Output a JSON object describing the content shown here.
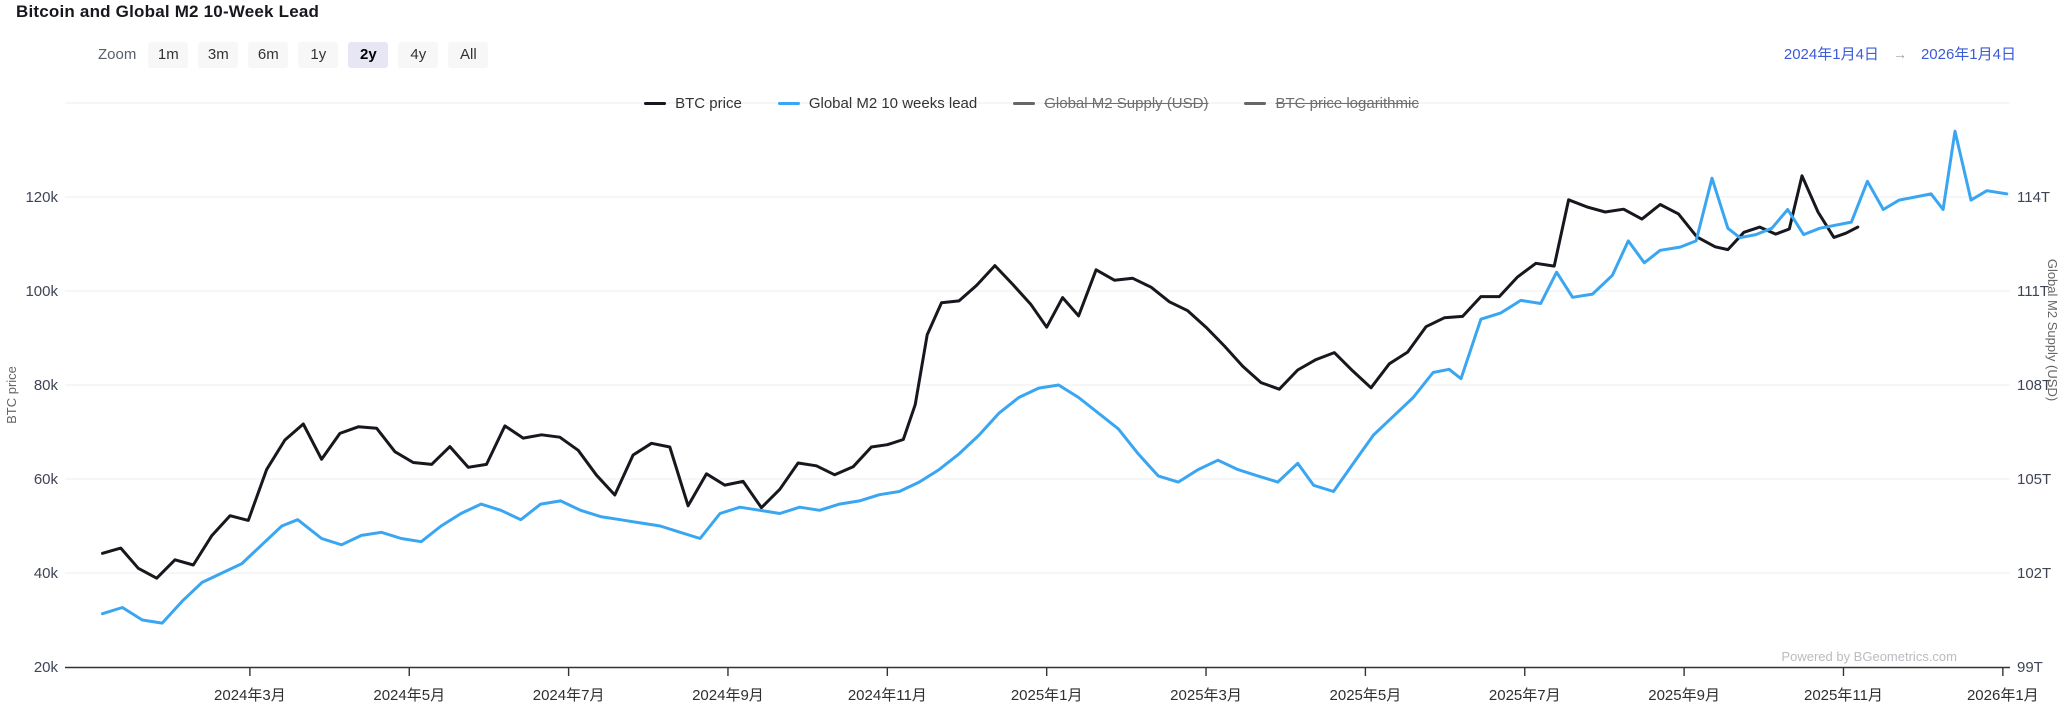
{
  "header": {
    "title": "Bitcoin and Global M2 10-Week Lead"
  },
  "toolbar": {
    "zoom_label": "Zoom",
    "buttons": [
      {
        "label": "1m",
        "selected": false
      },
      {
        "label": "3m",
        "selected": false
      },
      {
        "label": "6m",
        "selected": false
      },
      {
        "label": "1y",
        "selected": false
      },
      {
        "label": "2y",
        "selected": true
      },
      {
        "label": "4y",
        "selected": false
      },
      {
        "label": "All",
        "selected": false
      }
    ]
  },
  "date_range": {
    "from": "2024年1月4日",
    "arrow": "→",
    "to": "2026年1月4日",
    "accent_color": "#3b5bd7"
  },
  "legend": [
    {
      "label": "BTC price",
      "color": "#16181d",
      "enabled": true
    },
    {
      "label": "Global M2 10 weeks lead",
      "color": "#3aa6f2",
      "enabled": true
    },
    {
      "label": "Global M2 Supply (USD)",
      "color": "#666666",
      "enabled": false
    },
    {
      "label": "BTC price logarithmic",
      "color": "#666666",
      "enabled": false
    }
  ],
  "watermark": "Powered by BGeometrics.com",
  "chart_data": {
    "type": "line",
    "title": "Bitcoin and Global M2 10-Week Lead",
    "grid": true,
    "legend_position": "top",
    "x_axis": {
      "start_label": "2024年1月4日",
      "end_label": "2026年1月4日",
      "range_months_from_jan2024": [
        0.1,
        24.1
      ],
      "tick_months": [
        2,
        4,
        6,
        8,
        10,
        12,
        14,
        16,
        18,
        20,
        22,
        24
      ],
      "tick_labels": [
        "2024年3月",
        "2024年5月",
        "2024年7月",
        "2024年9月",
        "2024年11月",
        "2025年1月",
        "2025年3月",
        "2025年5月",
        "2025年7月",
        "2025年9月",
        "2025年11月",
        "2026年1月"
      ]
    },
    "y_left": {
      "label": "BTC price",
      "unit": "k USD",
      "tick_values": [
        20,
        40,
        60,
        80,
        100,
        120
      ],
      "tick_labels": [
        "20k",
        "40k",
        "60k",
        "80k",
        "100k",
        "120k"
      ],
      "range": [
        20,
        140
      ]
    },
    "y_right": {
      "label": "Global M2 Supply (USD)",
      "unit": "T USD",
      "tick_values": [
        99,
        102,
        105,
        108,
        111,
        114
      ],
      "tick_labels": [
        "99T",
        "102T",
        "105T",
        "108T",
        "111T",
        "114T"
      ],
      "range": [
        99,
        117
      ]
    },
    "series": [
      {
        "name": "BTC price",
        "axis": "left",
        "color": "#16181d",
        "points": [
          [
            0.15,
            44.2
          ],
          [
            0.38,
            45.3
          ],
          [
            0.6,
            41.0
          ],
          [
            0.83,
            38.9
          ],
          [
            1.06,
            42.8
          ],
          [
            1.29,
            41.7
          ],
          [
            1.52,
            47.9
          ],
          [
            1.75,
            52.2
          ],
          [
            1.98,
            51.2
          ],
          [
            2.21,
            62.0
          ],
          [
            2.44,
            68.3
          ],
          [
            2.67,
            71.7
          ],
          [
            2.9,
            64.2
          ],
          [
            3.13,
            69.7
          ],
          [
            3.36,
            71.1
          ],
          [
            3.59,
            70.8
          ],
          [
            3.82,
            65.8
          ],
          [
            4.05,
            63.5
          ],
          [
            4.28,
            63.1
          ],
          [
            4.51,
            66.9
          ],
          [
            4.74,
            62.5
          ],
          [
            4.97,
            63.1
          ],
          [
            5.2,
            71.3
          ],
          [
            5.43,
            68.7
          ],
          [
            5.66,
            69.4
          ],
          [
            5.89,
            68.9
          ],
          [
            6.12,
            66.1
          ],
          [
            6.35,
            60.8
          ],
          [
            6.58,
            56.6
          ],
          [
            6.81,
            65.1
          ],
          [
            7.04,
            67.6
          ],
          [
            7.27,
            66.8
          ],
          [
            7.5,
            54.3
          ],
          [
            7.73,
            61.1
          ],
          [
            7.96,
            58.7
          ],
          [
            8.19,
            59.5
          ],
          [
            8.42,
            53.9
          ],
          [
            8.65,
            57.8
          ],
          [
            8.88,
            63.4
          ],
          [
            9.11,
            62.8
          ],
          [
            9.34,
            60.9
          ],
          [
            9.57,
            62.6
          ],
          [
            9.8,
            66.8
          ],
          [
            10.0,
            67.3
          ],
          [
            10.2,
            68.4
          ],
          [
            10.35,
            75.8
          ],
          [
            10.5,
            90.7
          ],
          [
            10.68,
            97.5
          ],
          [
            10.9,
            97.9
          ],
          [
            11.12,
            101.2
          ],
          [
            11.35,
            105.4
          ],
          [
            11.58,
            101.3
          ],
          [
            11.8,
            97.2
          ],
          [
            12.0,
            92.3
          ],
          [
            12.2,
            98.6
          ],
          [
            12.4,
            94.7
          ],
          [
            12.62,
            104.5
          ],
          [
            12.85,
            102.3
          ],
          [
            13.08,
            102.7
          ],
          [
            13.31,
            100.8
          ],
          [
            13.54,
            97.7
          ],
          [
            13.77,
            95.8
          ],
          [
            14.0,
            92.3
          ],
          [
            14.23,
            88.3
          ],
          [
            14.46,
            84.0
          ],
          [
            14.69,
            80.5
          ],
          [
            14.92,
            79.1
          ],
          [
            15.15,
            83.2
          ],
          [
            15.38,
            85.4
          ],
          [
            15.61,
            86.9
          ],
          [
            15.84,
            83.0
          ],
          [
            16.07,
            79.4
          ],
          [
            16.3,
            84.5
          ],
          [
            16.53,
            87.0
          ],
          [
            16.76,
            92.4
          ],
          [
            16.99,
            94.3
          ],
          [
            17.22,
            94.6
          ],
          [
            17.45,
            98.8
          ],
          [
            17.68,
            98.8
          ],
          [
            17.91,
            103.0
          ],
          [
            18.14,
            105.9
          ],
          [
            18.37,
            105.3
          ],
          [
            18.55,
            119.4
          ],
          [
            18.78,
            117.9
          ],
          [
            19.01,
            116.8
          ],
          [
            19.24,
            117.4
          ],
          [
            19.47,
            115.3
          ],
          [
            19.7,
            118.4
          ],
          [
            19.93,
            116.4
          ],
          [
            20.16,
            111.5
          ],
          [
            20.39,
            109.4
          ],
          [
            20.55,
            108.8
          ],
          [
            20.75,
            112.5
          ],
          [
            20.95,
            113.6
          ],
          [
            21.15,
            112.1
          ],
          [
            21.32,
            113.2
          ],
          [
            21.48,
            124.5
          ],
          [
            21.68,
            116.8
          ],
          [
            21.88,
            111.4
          ],
          [
            22.03,
            112.3
          ],
          [
            22.18,
            113.6
          ]
        ]
      },
      {
        "name": "Global M2 10 weeks lead",
        "axis": "right",
        "color": "#3aa6f2",
        "points": [
          [
            0.15,
            100.7
          ],
          [
            0.4,
            100.9
          ],
          [
            0.65,
            100.5
          ],
          [
            0.9,
            100.4
          ],
          [
            1.15,
            101.1
          ],
          [
            1.4,
            101.7
          ],
          [
            1.65,
            102.0
          ],
          [
            1.9,
            102.3
          ],
          [
            2.15,
            102.9
          ],
          [
            2.4,
            103.5
          ],
          [
            2.6,
            103.7
          ],
          [
            2.9,
            103.1
          ],
          [
            3.15,
            102.9
          ],
          [
            3.4,
            103.2
          ],
          [
            3.65,
            103.3
          ],
          [
            3.9,
            103.1
          ],
          [
            4.15,
            103.0
          ],
          [
            4.4,
            103.5
          ],
          [
            4.65,
            103.9
          ],
          [
            4.9,
            104.2
          ],
          [
            5.15,
            104.0
          ],
          [
            5.4,
            103.7
          ],
          [
            5.65,
            104.2
          ],
          [
            5.9,
            104.3
          ],
          [
            6.15,
            104.0
          ],
          [
            6.4,
            103.8
          ],
          [
            6.65,
            103.7
          ],
          [
            6.9,
            103.6
          ],
          [
            7.15,
            103.5
          ],
          [
            7.4,
            103.3
          ],
          [
            7.65,
            103.1
          ],
          [
            7.9,
            103.9
          ],
          [
            8.15,
            104.1
          ],
          [
            8.4,
            104.0
          ],
          [
            8.65,
            103.9
          ],
          [
            8.9,
            104.1
          ],
          [
            9.15,
            104.0
          ],
          [
            9.4,
            104.2
          ],
          [
            9.65,
            104.3
          ],
          [
            9.9,
            104.5
          ],
          [
            10.15,
            104.6
          ],
          [
            10.4,
            104.9
          ],
          [
            10.65,
            105.3
          ],
          [
            10.9,
            105.8
          ],
          [
            11.15,
            106.4
          ],
          [
            11.4,
            107.1
          ],
          [
            11.65,
            107.6
          ],
          [
            11.9,
            107.9
          ],
          [
            12.15,
            108.0
          ],
          [
            12.4,
            107.6
          ],
          [
            12.65,
            107.1
          ],
          [
            12.9,
            106.6
          ],
          [
            13.15,
            105.8
          ],
          [
            13.4,
            105.1
          ],
          [
            13.65,
            104.9
          ],
          [
            13.9,
            105.3
          ],
          [
            14.15,
            105.6
          ],
          [
            14.4,
            105.3
          ],
          [
            14.65,
            105.1
          ],
          [
            14.9,
            104.9
          ],
          [
            15.15,
            105.5
          ],
          [
            15.35,
            104.8
          ],
          [
            15.6,
            104.6
          ],
          [
            15.85,
            105.5
          ],
          [
            16.1,
            106.4
          ],
          [
            16.35,
            107.0
          ],
          [
            16.6,
            107.6
          ],
          [
            16.85,
            108.4
          ],
          [
            17.05,
            108.5
          ],
          [
            17.2,
            108.2
          ],
          [
            17.45,
            110.1
          ],
          [
            17.7,
            110.3
          ],
          [
            17.95,
            110.7
          ],
          [
            18.2,
            110.6
          ],
          [
            18.4,
            111.6
          ],
          [
            18.6,
            110.8
          ],
          [
            18.85,
            110.9
          ],
          [
            19.1,
            111.5
          ],
          [
            19.3,
            112.6
          ],
          [
            19.5,
            111.9
          ],
          [
            19.7,
            112.3
          ],
          [
            19.95,
            112.4
          ],
          [
            20.15,
            112.6
          ],
          [
            20.35,
            114.6
          ],
          [
            20.55,
            113.0
          ],
          [
            20.7,
            112.7
          ],
          [
            20.9,
            112.8
          ],
          [
            21.1,
            113.0
          ],
          [
            21.3,
            113.6
          ],
          [
            21.5,
            112.8
          ],
          [
            21.7,
            113.0
          ],
          [
            21.9,
            113.1
          ],
          [
            22.1,
            113.2
          ],
          [
            22.3,
            114.5
          ],
          [
            22.5,
            113.6
          ],
          [
            22.7,
            113.9
          ],
          [
            22.9,
            114.0
          ],
          [
            23.1,
            114.1
          ],
          [
            23.25,
            113.6
          ],
          [
            23.4,
            116.1
          ],
          [
            23.6,
            113.9
          ],
          [
            23.8,
            114.2
          ],
          [
            24.05,
            114.1
          ]
        ]
      }
    ]
  }
}
